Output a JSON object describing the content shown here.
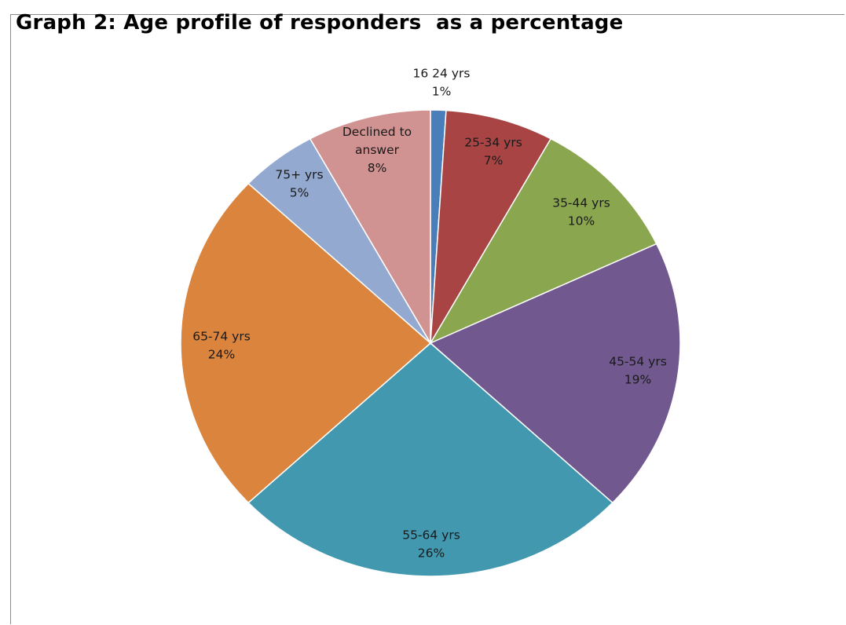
{
  "chart_data": {
    "type": "pie",
    "title": "Graph 2: Age profile of responders  as a percentage",
    "unit": "%",
    "start_angle_deg": 0,
    "direction": "clockwise",
    "legend": "none",
    "slices": [
      {
        "label": "16 24 yrs",
        "value": 1,
        "display": "1%",
        "color": "#4a7ebb"
      },
      {
        "label": "25-34 yrs",
        "value": 7,
        "display": "7%",
        "color": "#a84444"
      },
      {
        "label": "35-44 yrs",
        "value": 10,
        "display": "10%",
        "color": "#8aa64f"
      },
      {
        "label": "45-54 yrs",
        "value": 19,
        "display": "19%",
        "color": "#71588f"
      },
      {
        "label": "55-64 yrs",
        "value": 26,
        "display": "26%",
        "color": "#4198af"
      },
      {
        "label": "65-74 yrs",
        "value": 24,
        "display": "24%",
        "color": "#db843d"
      },
      {
        "label": "75+ yrs",
        "value": 5,
        "display": "5%",
        "color": "#93a9cf"
      },
      {
        "label": "Declined to answer",
        "label_lines": [
          "Declined to",
          "answer"
        ],
        "value": 8,
        "display": "8%",
        "color": "#d19392"
      }
    ]
  }
}
